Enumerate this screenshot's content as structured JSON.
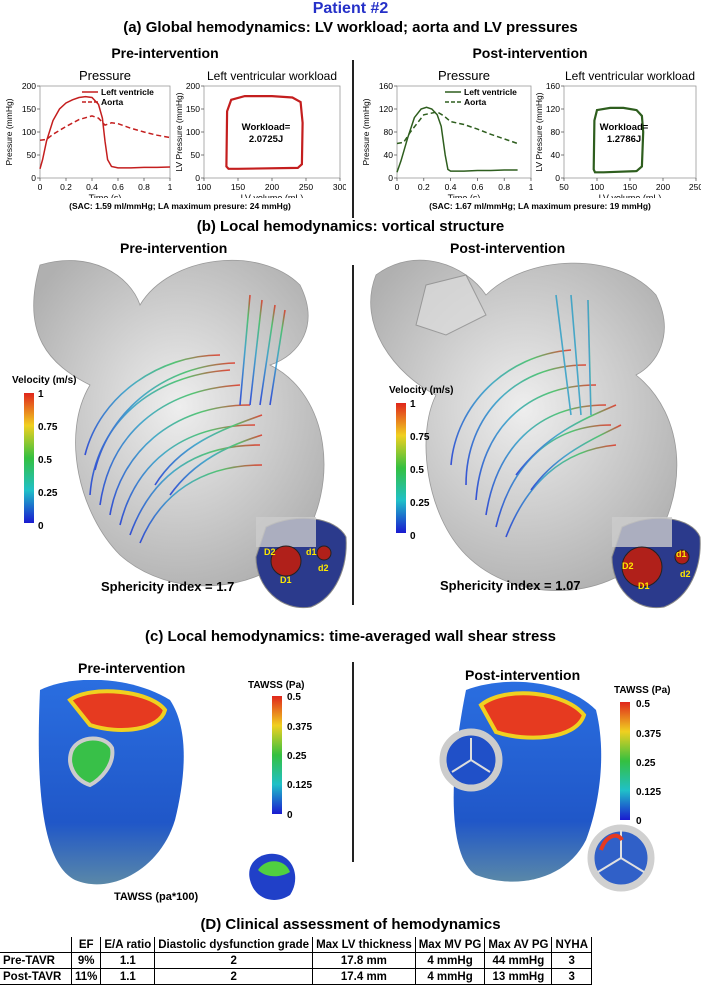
{
  "patient_title": "Patient #2",
  "section_a": {
    "title": "(a) Global hemodynamics: LV workload; aorta and LV pressures",
    "pre_label": "Pre-intervention",
    "post_label": "Post-intervention",
    "pressure_title": "Pressure",
    "workload_title": "Left ventricular workload",
    "pressure_ylabel": "Pressure (mmHg)",
    "pressure_xlabel": "Time (s)",
    "workload_ylabel": "LV Pressure (mmHg)",
    "workload_xlabel": "LV volume (mL)",
    "legend_lv": "Left ventricle",
    "legend_aorta": "Aorta",
    "pre_workload_line1": "Workload=",
    "pre_workload_line2": "2.0725J",
    "post_workload_line1": "Workload=",
    "post_workload_line2": "1.2786J",
    "pre_note": "(SAC: 1.59 ml/mmHg; LA maximum presure: 24 mmHg)",
    "post_note": "(SAC: 1.67 ml/mmHg; LA maximum presure: 19 mmHg)",
    "colors": {
      "pre": "#c41e1e",
      "post": "#2e5e1e"
    }
  },
  "section_b": {
    "title": "(b) Local hemodynamics: vortical structure",
    "pre_label": "Pre-intervention",
    "post_label": "Post-intervention",
    "velocity_title": "Velocity (m/s)",
    "velocity_ticks": [
      "1",
      "0.75",
      "0.5",
      "0.25",
      "0"
    ],
    "pre_sphericity": "Sphericity index = 1.7",
    "post_sphericity": "Sphericity index = 1.07",
    "inset_labels": {
      "d1": "d1",
      "d2": "d2",
      "D1": "D1",
      "D2": "D2"
    }
  },
  "section_c": {
    "title": "(c) Local hemodynamics: time-averaged wall shear stress",
    "pre_label": "Pre-intervention",
    "post_label": "Post-intervention",
    "tawss_title": "TAWSS (Pa)",
    "tawss_ticks": [
      "0.5",
      "0.375",
      "0.25",
      "0.125",
      "0"
    ],
    "tawss_inset_label": "TAWSS  (pa*100)"
  },
  "section_d": {
    "title": "(D) Clinical assessment of hemodynamics",
    "columns": [
      "EF",
      "E/A ratio",
      "Diastolic dysfunction grade",
      "Max LV thickness",
      "Max MV PG",
      "Max AV PG",
      "NYHA"
    ],
    "rows": [
      {
        "label": "Pre-TAVR",
        "cells": [
          "9%",
          "1.1",
          "2",
          "17.8 mm",
          "4 mmHg",
          "44 mmHg",
          "3"
        ]
      },
      {
        "label": "Post-TAVR",
        "cells": [
          "11%",
          "1.1",
          "2",
          "17.4 mm",
          "4 mmHg",
          "13 mmHg",
          "3"
        ]
      }
    ]
  },
  "chart_data": [
    {
      "type": "line",
      "title": "Pressure",
      "xlabel": "Time (s)",
      "ylabel": "Pressure (mmHg)",
      "xlim": [
        0,
        1
      ],
      "ylim": [
        0,
        200
      ],
      "xticks": [
        "0",
        "0.2",
        "0.4",
        "0.6",
        "0.8",
        "1"
      ],
      "yticks": [
        "0",
        "50",
        "100",
        "150",
        "200"
      ],
      "series": [
        {
          "name": "Left ventricle",
          "style": "solid",
          "x": [
            0,
            0.02,
            0.05,
            0.1,
            0.15,
            0.2,
            0.25,
            0.3,
            0.35,
            0.4,
            0.45,
            0.48,
            0.5,
            0.52,
            0.55,
            0.6,
            0.7,
            0.8,
            0.9,
            1.0
          ],
          "y": [
            20,
            40,
            80,
            125,
            150,
            163,
            170,
            175,
            177,
            175,
            160,
            130,
            80,
            40,
            25,
            22,
            22,
            23,
            23,
            24
          ]
        },
        {
          "name": "Aorta",
          "style": "dashed",
          "x": [
            0,
            0.05,
            0.1,
            0.2,
            0.3,
            0.4,
            0.45,
            0.5,
            0.55,
            0.6,
            0.7,
            0.8,
            0.9,
            1.0
          ],
          "y": [
            82,
            84,
            95,
            112,
            127,
            135,
            130,
            115,
            120,
            118,
            108,
            100,
            93,
            88
          ]
        }
      ],
      "grid": false
    },
    {
      "type": "line",
      "title": "Left ventricular workload",
      "xlabel": "LV volume (mL)",
      "ylabel": "LV Pressure (mmHg)",
      "xlim": [
        100,
        300
      ],
      "ylim": [
        0,
        200
      ],
      "xticks": [
        "100",
        "150",
        "200",
        "250",
        "300"
      ],
      "yticks": [
        "0",
        "50",
        "100",
        "150",
        "200"
      ],
      "series": [
        {
          "name": "",
          "style": "solid",
          "closed": true,
          "x": [
            133,
            134,
            140,
            160,
            200,
            230,
            242,
            245,
            244,
            238,
            150,
            136,
            133
          ],
          "y": [
            25,
            145,
            170,
            178,
            178,
            175,
            165,
            120,
            30,
            22,
            20,
            20,
            25
          ]
        }
      ],
      "annotation": "Workload= 2.0725J"
    },
    {
      "type": "line",
      "title": "Pressure",
      "xlabel": "Time (s)",
      "ylabel": "Pressure (mmHg)",
      "xlim": [
        0,
        1
      ],
      "ylim": [
        0,
        160
      ],
      "xticks": [
        "0",
        "0.2",
        "0.4",
        "0.6",
        "0.8",
        "1"
      ],
      "yticks": [
        "0",
        "40",
        "80",
        "120",
        "160"
      ],
      "series": [
        {
          "name": "Left ventricle",
          "style": "solid",
          "x": [
            0,
            0.03,
            0.08,
            0.13,
            0.18,
            0.22,
            0.26,
            0.3,
            0.33,
            0.36,
            0.38,
            0.4,
            0.5,
            0.6,
            0.7,
            0.8,
            0.9
          ],
          "y": [
            10,
            30,
            70,
            105,
            120,
            123,
            120,
            110,
            90,
            40,
            15,
            12,
            12,
            13,
            13,
            14,
            14
          ]
        },
        {
          "name": "Aorta",
          "style": "dashed",
          "x": [
            0,
            0.05,
            0.1,
            0.2,
            0.3,
            0.35,
            0.4,
            0.5,
            0.6,
            0.7,
            0.8,
            0.9
          ],
          "y": [
            60,
            62,
            80,
            110,
            115,
            108,
            98,
            93,
            85,
            76,
            68,
            60
          ]
        }
      ],
      "grid": false
    },
    {
      "type": "line",
      "title": "Left ventricular workload",
      "xlabel": "LV volume (mL)",
      "ylabel": "LV Pressure (mmHg)",
      "xlim": [
        50,
        250
      ],
      "ylim": [
        0,
        160
      ],
      "xticks": [
        "50",
        "100",
        "150",
        "200",
        "250"
      ],
      "yticks": [
        "0",
        "40",
        "80",
        "120",
        "160"
      ],
      "series": [
        {
          "name": "",
          "style": "solid",
          "closed": true,
          "x": [
            95,
            96,
            100,
            120,
            140,
            160,
            168,
            170,
            168,
            160,
            110,
            97,
            95
          ],
          "y": [
            15,
            100,
            118,
            122,
            122,
            118,
            108,
            80,
            20,
            12,
            10,
            10,
            15
          ]
        }
      ],
      "annotation": "Workload= 1.2786J"
    }
  ]
}
